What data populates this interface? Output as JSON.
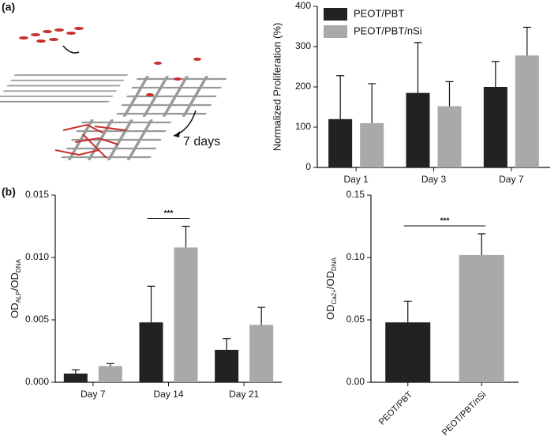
{
  "panel_labels": [
    "(a)",
    "(b)"
  ],
  "annotation": "7 days",
  "chart_data": [
    {
      "type": "bar",
      "ylabel": "Normalized Proliferation (%)",
      "categories": [
        "Day 1",
        "Day 3",
        "Day 7"
      ],
      "series": [
        {
          "name": "PEOT/PBT",
          "color": "#222222",
          "values": [
            120,
            185,
            200
          ],
          "errors": [
            108,
            125,
            63
          ]
        },
        {
          "name": "PEOT/PBT/nSi",
          "color": "#a9a9ab",
          "values": [
            110,
            152,
            278
          ],
          "errors": [
            98,
            61,
            70
          ]
        }
      ],
      "ylim": [
        0,
        400
      ],
      "yticks": [
        0,
        100,
        200,
        300,
        400
      ],
      "legend": "upper left"
    },
    {
      "type": "bar",
      "ylabel": [
        "OD",
        "ALP",
        "/OD",
        "DNA"
      ],
      "categories": [
        "Day 7",
        "Day 14",
        "Day 21"
      ],
      "series": [
        {
          "name": "PEOT/PBT",
          "color": "#222222",
          "values": [
            0.0007,
            0.0048,
            0.0026
          ],
          "errors": [
            0.0003,
            0.0029,
            0.0009
          ]
        },
        {
          "name": "PEOT/PBT/nSi",
          "color": "#a9a9ab",
          "values": [
            0.0013,
            0.0108,
            0.0046
          ],
          "errors": [
            0.0002,
            0.0017,
            0.0014
          ]
        }
      ],
      "ylim": [
        0,
        0.015
      ],
      "yticks": [
        {
          "value": 0,
          "label": "0.000"
        },
        {
          "value": 0.005,
          "label": "0.005"
        },
        {
          "value": 0.01,
          "label": "0.010"
        },
        {
          "value": 0.015,
          "label": "0.015"
        }
      ],
      "significance": "***"
    },
    {
      "type": "bar",
      "ylabel": [
        "OD",
        "Ca2+",
        "/OD",
        "DNA"
      ],
      "categories": [
        "PEOT/PBT",
        "PEOT/PBT/nSi"
      ],
      "series": [
        {
          "colors": [
            "#222222",
            "#a9a9ab"
          ],
          "values": [
            0.048,
            0.102
          ],
          "errors": [
            0.017,
            0.017
          ]
        }
      ],
      "ylim": [
        0,
        0.15
      ],
      "yticks": [
        {
          "value": 0,
          "label": "0.00"
        },
        {
          "value": 0.05,
          "label": "0.05"
        },
        {
          "value": 0.1,
          "label": "0.10"
        },
        {
          "value": 0.15,
          "label": "0.15"
        }
      ],
      "significance": "***"
    }
  ]
}
